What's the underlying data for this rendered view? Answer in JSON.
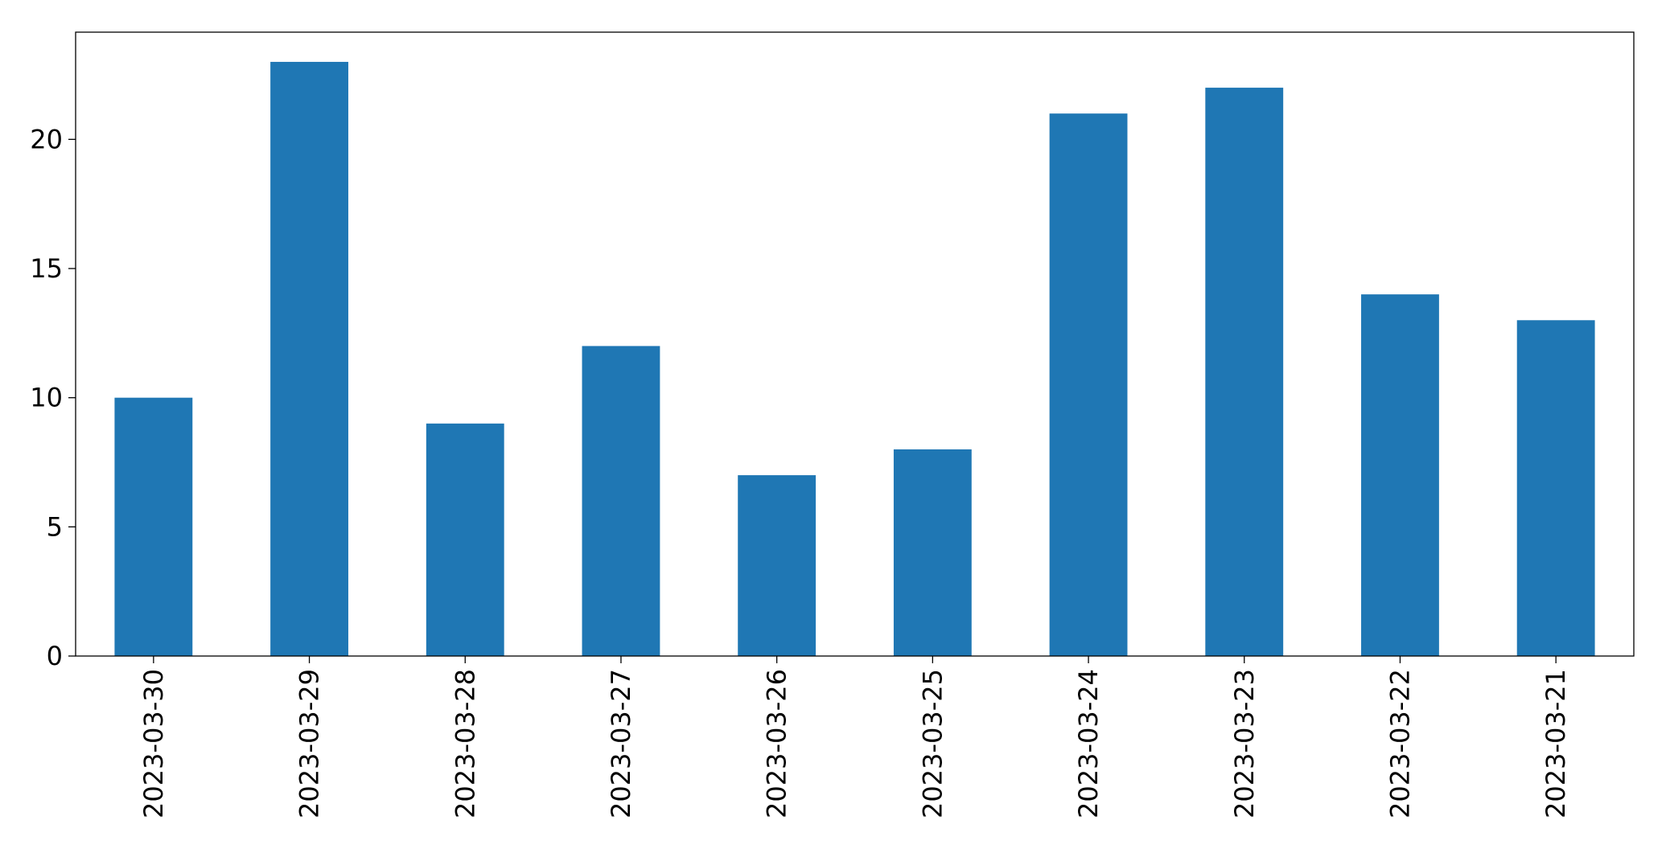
{
  "chart_data": {
    "type": "bar",
    "categories": [
      "2023-03-30",
      "2023-03-29",
      "2023-03-28",
      "2023-03-27",
      "2023-03-26",
      "2023-03-25",
      "2023-03-24",
      "2023-03-23",
      "2023-03-22",
      "2023-03-21"
    ],
    "values": [
      10,
      23,
      9,
      12,
      7,
      8,
      21,
      22,
      14,
      13
    ],
    "color": "#1f77b4",
    "ylim": [
      0,
      24.15
    ],
    "yticks": [
      0,
      5,
      10,
      15,
      20
    ],
    "grid": false
  }
}
